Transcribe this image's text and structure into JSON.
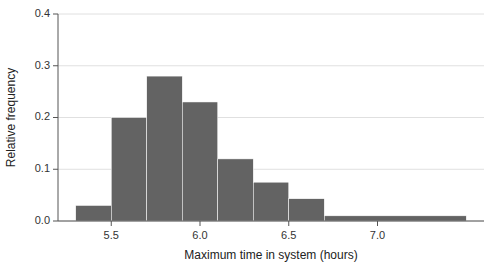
{
  "chart_data": {
    "type": "histogram",
    "bins": [
      5.3,
      5.5,
      5.7,
      5.9,
      6.1,
      6.3,
      6.5,
      6.7,
      7.5
    ],
    "values": [
      0.03,
      0.2,
      0.28,
      0.23,
      0.12,
      0.075,
      0.043,
      0.01
    ],
    "color": "#636363",
    "xlabel": "Maximum time in system (hours)",
    "ylabel": "Relative frequency",
    "xlim": [
      5.2,
      7.6
    ],
    "ylim": [
      0,
      0.4
    ],
    "xticks": [
      5.5,
      {
        "value": 6.0,
        "label": "6.0"
      },
      6.5,
      {
        "value": 7.0,
        "label": "7.0"
      }
    ],
    "yticks": [
      {
        "value": 0,
        "label": "0.0"
      },
      0.1,
      0.2,
      0.3,
      0.4
    ],
    "grid": true
  }
}
